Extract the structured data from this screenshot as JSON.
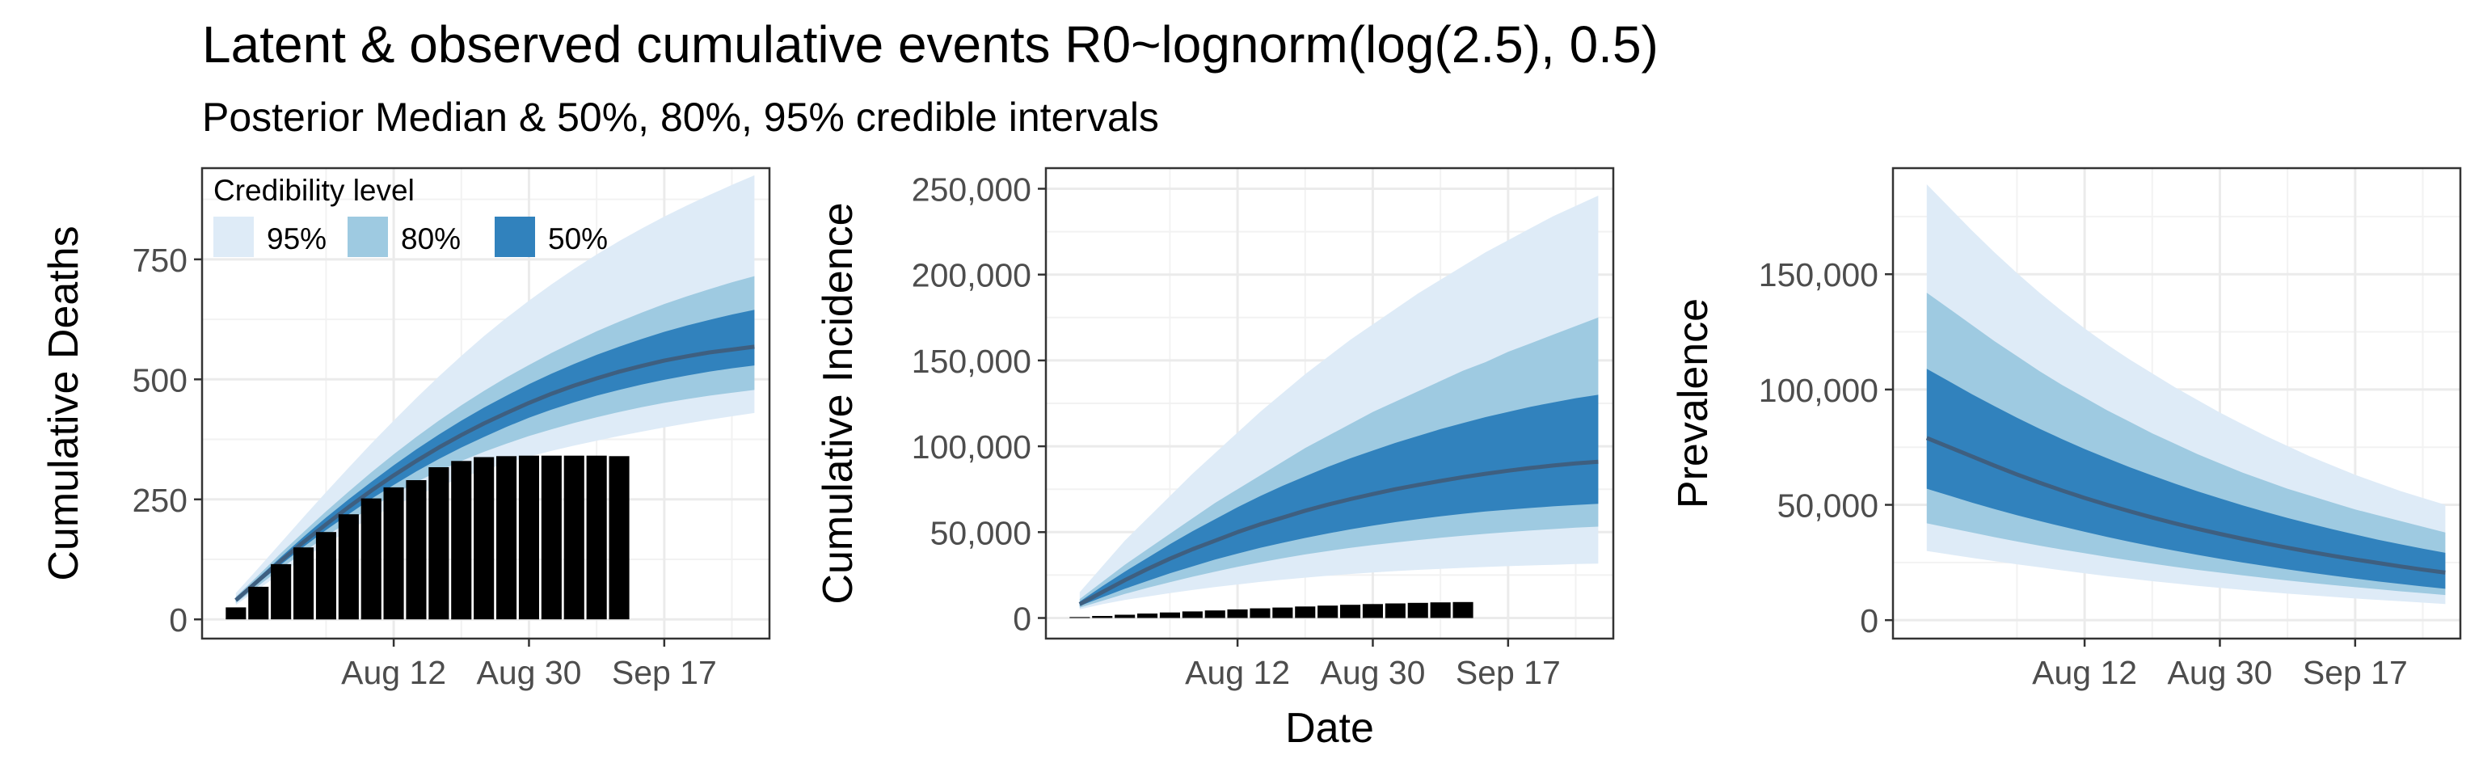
{
  "title": "Latent & observed cumulative events R0~lognorm(log(2.5), 0.5)",
  "subtitle": "Posterior Median & 50%, 80%, 95% credible intervals",
  "legend": {
    "title": "Credibility level",
    "items": [
      {
        "label": "95%",
        "color": "#deebf7"
      },
      {
        "label": "80%",
        "color": "#9ecae1"
      },
      {
        "label": "50%",
        "color": "#3182bd"
      }
    ]
  },
  "median_color": "#3e5f80",
  "bar_color": "#000000",
  "chart_data": [
    {
      "type": "area",
      "ylabel": "Cumulative Deaths",
      "xlabel": "",
      "ylim": [
        -40,
        940
      ],
      "xlim": [
        -13.5,
        62
      ],
      "grid": true,
      "legend_position": "top-left",
      "x_ticks": [
        {
          "value": 12,
          "label": "Aug 12"
        },
        {
          "value": 30,
          "label": "Aug 30"
        },
        {
          "value": 48,
          "label": "Sep 17"
        }
      ],
      "y_ticks": [
        {
          "value": 0,
          "label": "0"
        },
        {
          "value": 250,
          "label": "250"
        },
        {
          "value": 500,
          "label": "500"
        },
        {
          "value": 750,
          "label": "750"
        }
      ],
      "band_x": [
        -9,
        -6,
        -3,
        0,
        3,
        6,
        9,
        12,
        15,
        18,
        21,
        24,
        27,
        30,
        33,
        36,
        39,
        42,
        45,
        48,
        51,
        54,
        57,
        60
      ],
      "median": [
        40,
        81,
        122,
        161,
        198,
        234,
        268,
        300,
        330,
        358,
        384,
        408,
        430,
        451,
        470,
        487,
        502,
        516,
        528,
        539,
        548,
        556,
        562,
        568
      ],
      "bands": [
        {
          "level": "95%",
          "lower": [
            30,
            63,
            96,
            127,
            157,
            185,
            212,
            236,
            258,
            277,
            295,
            311,
            325,
            339,
            351,
            362,
            372,
            382,
            391,
            400,
            408,
            416,
            423,
            430
          ],
          "upper": [
            55,
            107,
            160,
            213,
            265,
            316,
            366,
            414,
            461,
            506,
            549,
            590,
            628,
            664,
            698,
            730,
            760,
            788,
            814,
            839,
            862,
            884,
            905,
            925
          ]
        },
        {
          "level": "80%",
          "lower": [
            34,
            70,
            106,
            140,
            173,
            204,
            233,
            260,
            286,
            309,
            330,
            349,
            366,
            382,
            396,
            409,
            421,
            432,
            442,
            451,
            459,
            466,
            472,
            478
          ],
          "upper": [
            47,
            92,
            138,
            182,
            225,
            266,
            306,
            344,
            380,
            414,
            446,
            476,
            504,
            530,
            555,
            578,
            600,
            620,
            639,
            657,
            673,
            688,
            702,
            715
          ]
        },
        {
          "level": "50%",
          "lower": [
            37,
            76,
            114,
            151,
            186,
            219,
            251,
            280,
            308,
            334,
            358,
            380,
            401,
            420,
            437,
            452,
            466,
            478,
            489,
            499,
            508,
            516,
            523,
            529
          ],
          "upper": [
            43,
            87,
            130,
            172,
            212,
            250,
            286,
            321,
            354,
            385,
            414,
            441,
            466,
            490,
            512,
            532,
            551,
            568,
            584,
            599,
            612,
            624,
            635,
            645
          ]
        }
      ],
      "bars": {
        "x": [
          -9,
          -6,
          -3,
          0,
          3,
          6,
          9,
          12,
          15,
          18,
          21,
          24,
          27,
          30,
          33,
          36,
          39,
          42
        ],
        "values": [
          25,
          68,
          115,
          150,
          182,
          219,
          252,
          275,
          290,
          317,
          330,
          338,
          340,
          341,
          341,
          341,
          341,
          340
        ]
      }
    },
    {
      "type": "area",
      "ylabel": "Cumulative Incidence",
      "xlabel": "Date",
      "ylim": [
        -12000,
        262000
      ],
      "xlim": [
        -13.5,
        62
      ],
      "grid": true,
      "x_ticks": [
        {
          "value": 12,
          "label": "Aug 12"
        },
        {
          "value": 30,
          "label": "Aug 30"
        },
        {
          "value": 48,
          "label": "Sep 17"
        }
      ],
      "y_ticks": [
        {
          "value": 0,
          "label": "0"
        },
        {
          "value": 50000,
          "label": "50,000"
        },
        {
          "value": 100000,
          "label": "100,000"
        },
        {
          "value": 150000,
          "label": "150,000"
        },
        {
          "value": 200000,
          "label": "200,000"
        },
        {
          "value": 250000,
          "label": "250,000"
        }
      ],
      "band_x": [
        -9,
        -6,
        -3,
        0,
        3,
        6,
        9,
        12,
        15,
        18,
        21,
        24,
        27,
        30,
        33,
        36,
        39,
        42,
        45,
        48,
        51,
        54,
        57,
        60
      ],
      "median": [
        8000,
        15000,
        22000,
        28500,
        34500,
        40000,
        45000,
        50000,
        54500,
        58500,
        62500,
        66000,
        69200,
        72200,
        75000,
        77500,
        79800,
        82000,
        84000,
        85800,
        87400,
        88800,
        90000,
        91000
      ],
      "bands": [
        {
          "level": "95%",
          "lower": [
            5000,
            8000,
            10500,
            12500,
            14500,
            16300,
            18000,
            19500,
            21000,
            22300,
            23500,
            24600,
            25600,
            26500,
            27300,
            28000,
            28600,
            29200,
            29700,
            30200,
            30600,
            31000,
            31400,
            31700
          ],
          "upper": [
            15000,
            30000,
            45000,
            58000,
            71000,
            84000,
            96000,
            108000,
            120000,
            131000,
            142000,
            152000,
            162000,
            171000,
            180000,
            189000,
            197000,
            205000,
            213000,
            220000,
            227000,
            234000,
            240000,
            246000
          ]
        },
        {
          "level": "80%",
          "lower": [
            6000,
            10000,
            14000,
            17500,
            20800,
            24000,
            27000,
            29800,
            32400,
            34800,
            37000,
            39000,
            40800,
            42500,
            44000,
            45400,
            46700,
            47900,
            49000,
            50000,
            51000,
            51800,
            52600,
            53200
          ],
          "upper": [
            11000,
            21000,
            31000,
            40000,
            49000,
            58000,
            67000,
            75000,
            83000,
            91000,
            99000,
            106000,
            113000,
            120000,
            126000,
            132000,
            138000,
            144000,
            149000,
            155000,
            160000,
            165000,
            170000,
            175000
          ]
        },
        {
          "level": "50%",
          "lower": [
            7000,
            12000,
            17000,
            21500,
            26000,
            30000,
            34000,
            37500,
            40800,
            43800,
            46600,
            49200,
            51600,
            53800,
            55800,
            57600,
            59200,
            60700,
            62000,
            63100,
            64100,
            65000,
            65800,
            66500
          ],
          "upper": [
            9500,
            18500,
            27000,
            35000,
            43000,
            50500,
            57500,
            64500,
            71000,
            77000,
            82500,
            88000,
            93000,
            97500,
            102000,
            106000,
            110000,
            113500,
            117000,
            120000,
            123000,
            125500,
            128000,
            130000
          ]
        }
      ],
      "bars": {
        "x": [
          -9,
          -6,
          -3,
          0,
          3,
          6,
          9,
          12,
          15,
          18,
          21,
          24,
          27,
          30,
          33,
          36,
          39,
          42
        ],
        "values": [
          500,
          1200,
          1900,
          2600,
          3200,
          3800,
          4400,
          5000,
          5600,
          6100,
          6700,
          7200,
          7700,
          8100,
          8500,
          8800,
          9100,
          9300
        ]
      }
    },
    {
      "type": "area",
      "ylabel": "Prevalence",
      "xlabel": "",
      "ylim": [
        -8000,
        196000
      ],
      "xlim": [
        -13.5,
        62
      ],
      "grid": true,
      "x_ticks": [
        {
          "value": 12,
          "label": "Aug 12"
        },
        {
          "value": 30,
          "label": "Aug 30"
        },
        {
          "value": 48,
          "label": "Sep 17"
        }
      ],
      "y_ticks": [
        {
          "value": 0,
          "label": "0"
        },
        {
          "value": 50000,
          "label": "50,000"
        },
        {
          "value": 100000,
          "label": "100,000"
        },
        {
          "value": 150000,
          "label": "150,000"
        }
      ],
      "band_x": [
        -9,
        -6,
        -3,
        0,
        3,
        6,
        9,
        12,
        15,
        18,
        21,
        24,
        27,
        30,
        33,
        36,
        39,
        42,
        45,
        48,
        51,
        54,
        57,
        60
      ],
      "median": [
        79000,
        75000,
        71000,
        67000,
        63200,
        59600,
        56200,
        53000,
        50000,
        47200,
        44500,
        42000,
        39600,
        37400,
        35300,
        33300,
        31400,
        29600,
        27900,
        26300,
        24800,
        23300,
        21900,
        20600
      ],
      "bands": [
        {
          "level": "95%",
          "lower": [
            30000,
            28500,
            27000,
            25600,
            24200,
            22900,
            21600,
            20300,
            19100,
            18000,
            16900,
            15900,
            14900,
            14000,
            13100,
            12300,
            11500,
            10800,
            10100,
            9400,
            8800,
            8200,
            7600,
            7000
          ],
          "upper": [
            189000,
            179000,
            169000,
            159500,
            150500,
            142000,
            134000,
            126500,
            119500,
            113000,
            107000,
            101000,
            95500,
            90000,
            85000,
            80000,
            75500,
            71000,
            67000,
            63000,
            59500,
            56000,
            53000,
            50000
          ]
        },
        {
          "level": "80%",
          "lower": [
            42000,
            40000,
            38000,
            36000,
            34100,
            32300,
            30600,
            29000,
            27400,
            25900,
            24500,
            23100,
            21800,
            20600,
            19400,
            18300,
            17200,
            16200,
            15200,
            14300,
            13400,
            12500,
            11700,
            10900
          ],
          "upper": [
            142000,
            135000,
            128000,
            121000,
            114500,
            108000,
            102000,
            96500,
            91000,
            86000,
            81000,
            76500,
            72000,
            68000,
            64000,
            60500,
            57000,
            54000,
            51000,
            48000,
            45500,
            43000,
            40500,
            38000
          ]
        },
        {
          "level": "50%",
          "lower": [
            57000,
            54000,
            51000,
            48200,
            45500,
            43000,
            40600,
            38300,
            36100,
            34000,
            32000,
            30100,
            28300,
            26600,
            25000,
            23500,
            22000,
            20600,
            19300,
            18000,
            16800,
            15700,
            14600,
            13600
          ],
          "upper": [
            109000,
            103500,
            98000,
            92800,
            87800,
            83000,
            78500,
            74200,
            70200,
            66300,
            62700,
            59200,
            55900,
            52800,
            49800,
            47000,
            44300,
            41800,
            39400,
            37100,
            34900,
            32900,
            31000,
            29200
          ]
        }
      ],
      "bars": {
        "x": [],
        "values": []
      }
    }
  ]
}
